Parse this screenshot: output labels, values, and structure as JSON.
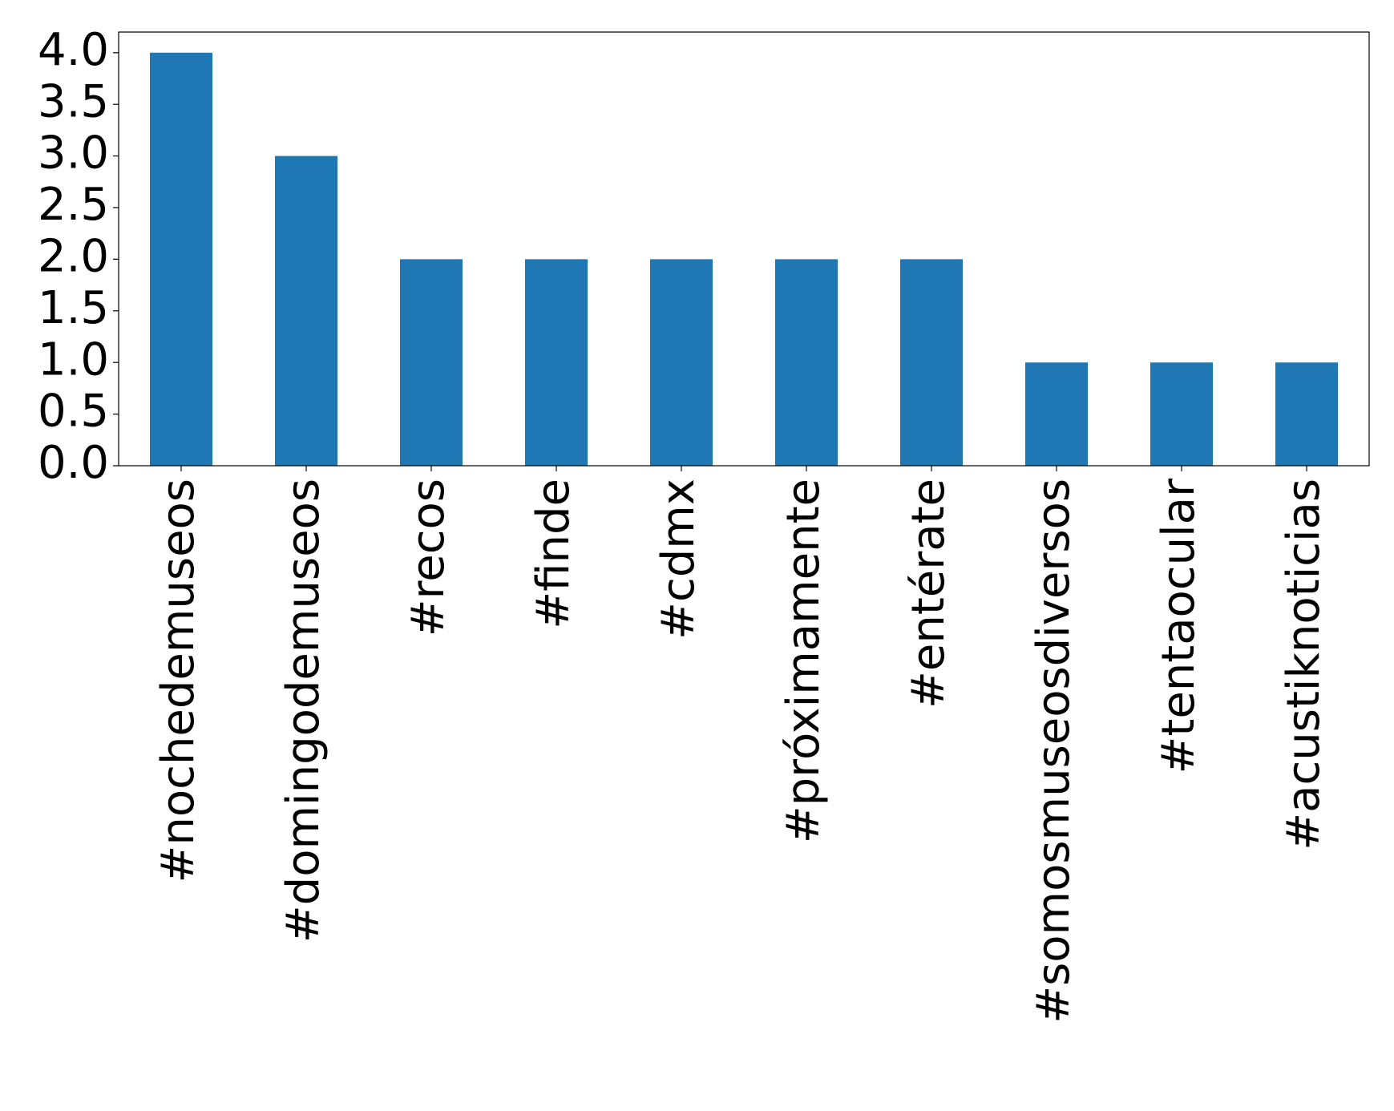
{
  "chart_data": {
    "type": "bar",
    "categories": [
      "#nochedemuseos",
      "#domingodemuseos",
      "#recos",
      "#finde",
      "#cdmx",
      "#próximamente",
      "#entérate",
      "#somosmuseosdiversos",
      "#tentaocular",
      "#acustiknoticias"
    ],
    "values": [
      4,
      3,
      2,
      2,
      2,
      2,
      2,
      1,
      1,
      1
    ],
    "color": "#1f77b4",
    "ylim": [
      0,
      4.2
    ],
    "yticks": [
      {
        "value": 0,
        "label": "0.0"
      },
      {
        "value": 0.5,
        "label": "0.5"
      },
      {
        "value": 1,
        "label": "1.0"
      },
      {
        "value": 1.5,
        "label": "1.5"
      },
      {
        "value": 2,
        "label": "2.0"
      },
      {
        "value": 2.5,
        "label": "2.5"
      },
      {
        "value": 3,
        "label": "3.0"
      },
      {
        "value": 3.5,
        "label": "3.5"
      },
      {
        "value": 4,
        "label": "4.0"
      }
    ],
    "grid": false
  }
}
